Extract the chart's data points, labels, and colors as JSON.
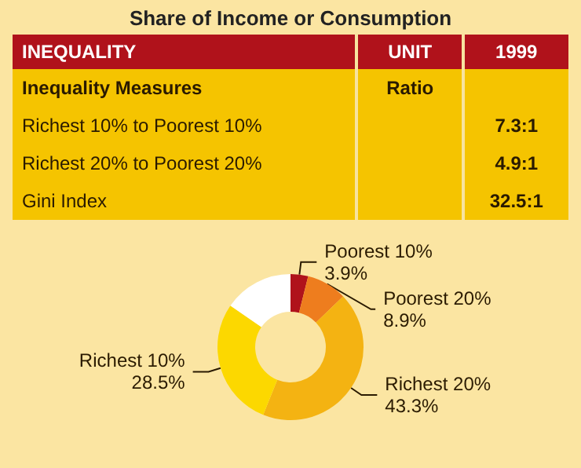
{
  "chart_data": [
    {
      "type": "other",
      "title": "Share of Income or Consumption",
      "annotations": [
        "INEQUALITY",
        "UNIT",
        "1999",
        "Inequality Measures",
        "Ratio",
        "Richest 10% to Poorest 10%",
        "7.3:1",
        "Richest 20% to Poorest 20%",
        "4.9:1",
        "Gini Index",
        "32.5:1"
      ]
    },
    {
      "type": "donut",
      "categories": [
        "Poorest 10%",
        "Poorest 20%",
        "Richest 20%",
        "Richest 10%",
        null
      ],
      "values": [
        3.9,
        8.9,
        43.3,
        28.5,
        15.4
      ],
      "value_labels": [
        "3.9%",
        "8.9%",
        "43.3%",
        "28.5%",
        null
      ],
      "colors": [
        "#b0121b",
        "#ee7d1e",
        "#f4b312",
        "#fcd800",
        "#ffffff"
      ]
    }
  ]
}
